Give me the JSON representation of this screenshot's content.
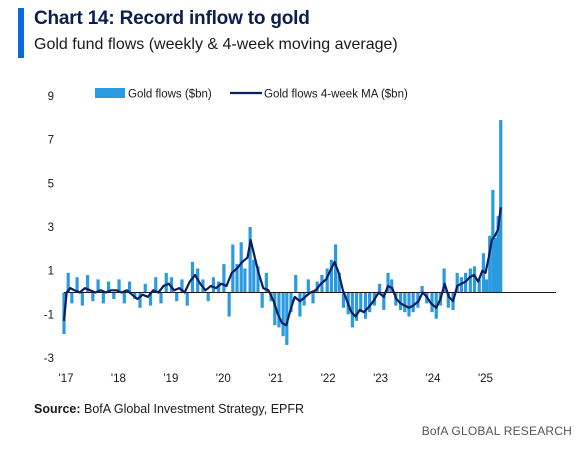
{
  "header": {
    "title": "Chart 14: Record inflow to gold",
    "subtitle": "Gold fund flows (weekly & 4-week moving average)"
  },
  "footer": {
    "source_label": "Source:",
    "source_text": " BofA Global Investment Strategy, EPFR",
    "brand": "BofA GLOBAL RESEARCH"
  },
  "colors": {
    "bars": "#2a9be0",
    "ma_line": "#0b1f5c",
    "accent": "#0a6bd6"
  },
  "chart_data": {
    "type": "bar",
    "title": "Chart 14: Record inflow to gold",
    "subtitle": "Gold fund flows (weekly & 4-week moving average)",
    "ylim": [
      -3,
      9
    ],
    "yticks": [
      -3,
      -1,
      1,
      3,
      5,
      7,
      9
    ],
    "x_domain": [
      2017.0,
      2025.85
    ],
    "xticks": [
      {
        "value": 2017,
        "label": "'17"
      },
      {
        "value": 2018,
        "label": "'18"
      },
      {
        "value": 2019,
        "label": "'19"
      },
      {
        "value": 2020,
        "label": "'20"
      },
      {
        "value": 2021,
        "label": "'21"
      },
      {
        "value": 2022,
        "label": "'22"
      },
      {
        "value": 2023,
        "label": "'23"
      },
      {
        "value": 2024,
        "label": "'24"
      },
      {
        "value": 2025,
        "label": "'25"
      }
    ],
    "legend": {
      "placement": "top-left"
    },
    "series": [
      {
        "name": "Gold flows ($bn)",
        "kind": "bar",
        "points": [
          [
            2017.0,
            -1.9
          ],
          [
            2017.08,
            0.9
          ],
          [
            2017.15,
            -0.5
          ],
          [
            2017.25,
            0.7
          ],
          [
            2017.35,
            -0.6
          ],
          [
            2017.45,
            0.8
          ],
          [
            2017.55,
            -0.4
          ],
          [
            2017.65,
            0.6
          ],
          [
            2017.75,
            -0.5
          ],
          [
            2017.85,
            0.5
          ],
          [
            2017.95,
            -0.3
          ],
          [
            2018.05,
            0.6
          ],
          [
            2018.15,
            -0.5
          ],
          [
            2018.25,
            0.5
          ],
          [
            2018.35,
            -0.3
          ],
          [
            2018.45,
            -0.7
          ],
          [
            2018.55,
            0.4
          ],
          [
            2018.65,
            -0.6
          ],
          [
            2018.75,
            0.7
          ],
          [
            2018.85,
            -0.5
          ],
          [
            2018.95,
            0.9
          ],
          [
            2019.05,
            0.7
          ],
          [
            2019.15,
            -0.4
          ],
          [
            2019.25,
            0.6
          ],
          [
            2019.35,
            -0.6
          ],
          [
            2019.45,
            1.4
          ],
          [
            2019.55,
            1.1
          ],
          [
            2019.65,
            0.6
          ],
          [
            2019.75,
            -0.4
          ],
          [
            2019.85,
            0.7
          ],
          [
            2019.95,
            0.5
          ],
          [
            2020.05,
            1.3
          ],
          [
            2020.15,
            -1.1
          ],
          [
            2020.22,
            2.2
          ],
          [
            2020.3,
            1.3
          ],
          [
            2020.38,
            2.3
          ],
          [
            2020.45,
            1.1
          ],
          [
            2020.55,
            3.0
          ],
          [
            2020.62,
            1.5
          ],
          [
            2020.7,
            1.2
          ],
          [
            2020.78,
            -0.7
          ],
          [
            2020.86,
            0.9
          ],
          [
            2020.95,
            -0.4
          ],
          [
            2021.02,
            -1.5
          ],
          [
            2021.1,
            -1.6
          ],
          [
            2021.18,
            -2.0
          ],
          [
            2021.25,
            -2.4
          ],
          [
            2021.33,
            -0.9
          ],
          [
            2021.42,
            0.8
          ],
          [
            2021.5,
            -1.1
          ],
          [
            2021.58,
            -0.6
          ],
          [
            2021.66,
            0.6
          ],
          [
            2021.75,
            -0.5
          ],
          [
            2021.83,
            0.5
          ],
          [
            2021.92,
            0.8
          ],
          [
            2022.02,
            1.1
          ],
          [
            2022.1,
            1.5
          ],
          [
            2022.18,
            2.2
          ],
          [
            2022.25,
            0.9
          ],
          [
            2022.33,
            -0.7
          ],
          [
            2022.42,
            -1.0
          ],
          [
            2022.5,
            -1.6
          ],
          [
            2022.58,
            -1.3
          ],
          [
            2022.66,
            -0.9
          ],
          [
            2022.75,
            -1.2
          ],
          [
            2022.83,
            -0.9
          ],
          [
            2022.92,
            -0.6
          ],
          [
            2023.02,
            0.4
          ],
          [
            2023.1,
            -0.8
          ],
          [
            2023.18,
            0.9
          ],
          [
            2023.25,
            0.6
          ],
          [
            2023.33,
            -0.6
          ],
          [
            2023.42,
            -0.8
          ],
          [
            2023.5,
            -0.9
          ],
          [
            2023.58,
            -1.1
          ],
          [
            2023.66,
            -0.9
          ],
          [
            2023.75,
            -0.7
          ],
          [
            2023.83,
            0.3
          ],
          [
            2023.92,
            -0.5
          ],
          [
            2024.02,
            -0.9
          ],
          [
            2024.1,
            -1.2
          ],
          [
            2024.18,
            -0.6
          ],
          [
            2024.25,
            1.1
          ],
          [
            2024.33,
            -0.7
          ],
          [
            2024.42,
            -0.8
          ],
          [
            2024.5,
            0.9
          ],
          [
            2024.58,
            0.7
          ],
          [
            2024.66,
            0.9
          ],
          [
            2024.75,
            1.1
          ],
          [
            2024.83,
            1.2
          ],
          [
            2024.92,
            0.6
          ],
          [
            2025.0,
            1.8
          ],
          [
            2025.06,
            0.6
          ],
          [
            2025.12,
            2.6
          ],
          [
            2025.18,
            4.7
          ],
          [
            2025.23,
            2.5
          ],
          [
            2025.28,
            3.5
          ],
          [
            2025.33,
            7.9
          ]
        ]
      },
      {
        "name": "Gold flows 4-week MA ($bn)",
        "kind": "line",
        "points": [
          [
            2017.0,
            -1.3
          ],
          [
            2017.05,
            0.0
          ],
          [
            2017.12,
            0.2
          ],
          [
            2017.2,
            0.1
          ],
          [
            2017.3,
            0.0
          ],
          [
            2017.4,
            0.2
          ],
          [
            2017.5,
            0.1
          ],
          [
            2017.6,
            0.0
          ],
          [
            2017.7,
            0.1
          ],
          [
            2017.8,
            0.0
          ],
          [
            2017.9,
            0.1
          ],
          [
            2018.0,
            0.1
          ],
          [
            2018.1,
            0.0
          ],
          [
            2018.2,
            0.1
          ],
          [
            2018.3,
            -0.1
          ],
          [
            2018.4,
            -0.3
          ],
          [
            2018.5,
            -0.1
          ],
          [
            2018.6,
            -0.2
          ],
          [
            2018.7,
            0.1
          ],
          [
            2018.8,
            0.0
          ],
          [
            2018.9,
            0.3
          ],
          [
            2019.0,
            0.4
          ],
          [
            2019.1,
            0.1
          ],
          [
            2019.2,
            0.2
          ],
          [
            2019.3,
            0.0
          ],
          [
            2019.4,
            0.5
          ],
          [
            2019.5,
            0.8
          ],
          [
            2019.6,
            0.4
          ],
          [
            2019.7,
            0.1
          ],
          [
            2019.8,
            0.3
          ],
          [
            2019.9,
            0.2
          ],
          [
            2020.0,
            0.4
          ],
          [
            2020.1,
            0.3
          ],
          [
            2020.2,
            0.9
          ],
          [
            2020.3,
            1.1
          ],
          [
            2020.4,
            1.4
          ],
          [
            2020.5,
            1.6
          ],
          [
            2020.56,
            2.4
          ],
          [
            2020.62,
            1.8
          ],
          [
            2020.7,
            1.0
          ],
          [
            2020.8,
            0.2
          ],
          [
            2020.9,
            0.1
          ],
          [
            2021.0,
            -0.4
          ],
          [
            2021.08,
            -1.0
          ],
          [
            2021.16,
            -1.4
          ],
          [
            2021.24,
            -1.5
          ],
          [
            2021.32,
            -0.8
          ],
          [
            2021.4,
            -0.2
          ],
          [
            2021.5,
            -0.4
          ],
          [
            2021.6,
            -0.2
          ],
          [
            2021.7,
            0.0
          ],
          [
            2021.8,
            0.1
          ],
          [
            2021.9,
            0.4
          ],
          [
            2022.0,
            0.6
          ],
          [
            2022.08,
            1.0
          ],
          [
            2022.16,
            1.4
          ],
          [
            2022.24,
            0.9
          ],
          [
            2022.32,
            0.1
          ],
          [
            2022.4,
            -0.4
          ],
          [
            2022.48,
            -0.9
          ],
          [
            2022.56,
            -1.1
          ],
          [
            2022.64,
            -0.8
          ],
          [
            2022.72,
            -0.9
          ],
          [
            2022.8,
            -0.7
          ],
          [
            2022.9,
            -0.4
          ],
          [
            2023.0,
            0.0
          ],
          [
            2023.1,
            -0.2
          ],
          [
            2023.18,
            0.3
          ],
          [
            2023.26,
            0.2
          ],
          [
            2023.34,
            -0.3
          ],
          [
            2023.42,
            -0.5
          ],
          [
            2023.5,
            -0.6
          ],
          [
            2023.58,
            -0.7
          ],
          [
            2023.66,
            -0.6
          ],
          [
            2023.76,
            -0.4
          ],
          [
            2023.84,
            0.0
          ],
          [
            2023.92,
            -0.2
          ],
          [
            2024.0,
            -0.5
          ],
          [
            2024.1,
            -0.7
          ],
          [
            2024.18,
            -0.3
          ],
          [
            2024.26,
            0.4
          ],
          [
            2024.34,
            -0.2
          ],
          [
            2024.42,
            -0.4
          ],
          [
            2024.5,
            0.3
          ],
          [
            2024.58,
            0.4
          ],
          [
            2024.66,
            0.5
          ],
          [
            2024.74,
            0.7
          ],
          [
            2024.82,
            0.8
          ],
          [
            2024.9,
            0.5
          ],
          [
            2024.98,
            1.0
          ],
          [
            2025.04,
            0.9
          ],
          [
            2025.1,
            1.6
          ],
          [
            2025.16,
            2.4
          ],
          [
            2025.22,
            2.6
          ],
          [
            2025.28,
            2.9
          ],
          [
            2025.33,
            3.9
          ]
        ]
      }
    ]
  }
}
